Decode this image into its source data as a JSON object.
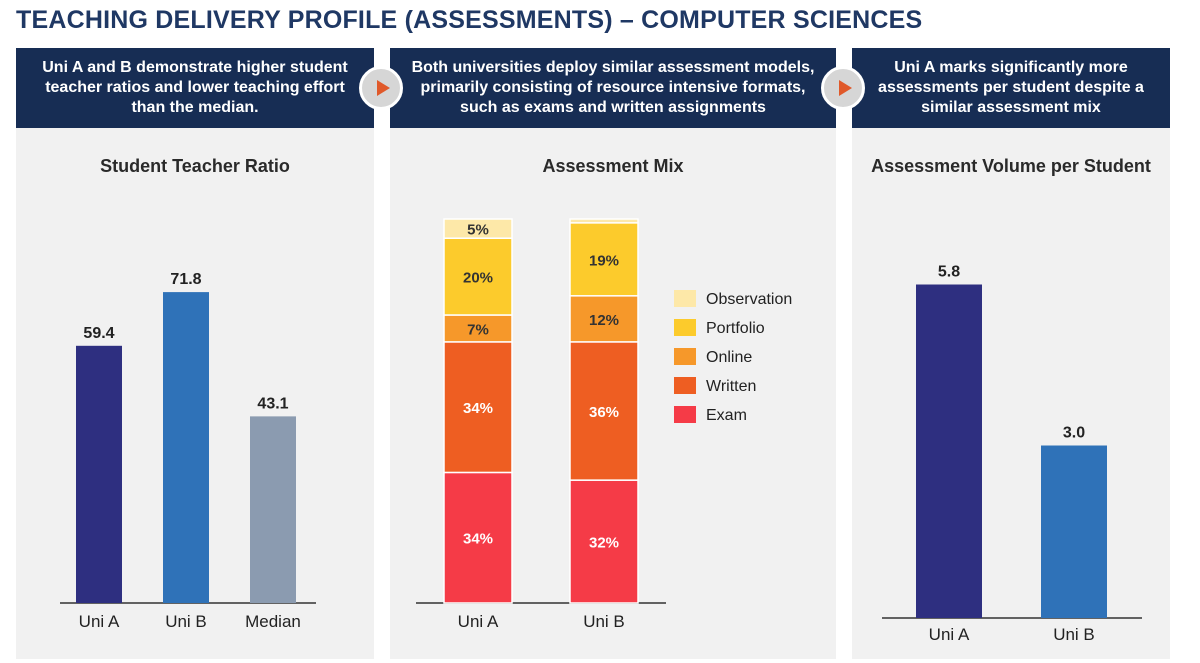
{
  "page_title": "TEACHING DELIVERY PROFILE (ASSESSMENTS) – COMPUTER SCIENCES",
  "panels": [
    {
      "header": "Uni A and B demonstrate higher student teacher ratios and lower teaching effort than the median."
    },
    {
      "header": "Both universities deploy similar assessment models, primarily consisting of resource intensive formats, such as exams and written assignments"
    },
    {
      "header": "Uni A marks significantly more assessments per student despite a similar assessment mix"
    }
  ],
  "colors": {
    "header_bg": "#172d54",
    "panel_bg": "#f1f1f1",
    "arrow": "#e0592a",
    "uni_a": "#2e2f80",
    "uni_b": "#2f72b8",
    "median": "#8b9bb0",
    "observation": "#fde8a8",
    "portfolio": "#fccb2c",
    "online": "#f6982a",
    "written": "#ee5e22",
    "exam": "#f53b47"
  },
  "chart_data": [
    {
      "type": "bar",
      "title": "Student Teacher Ratio",
      "categories": [
        "Uni A",
        "Uni B",
        "Median"
      ],
      "values": [
        59.4,
        71.8,
        43.1
      ],
      "value_labels": [
        "59.4",
        "71.8",
        "43.1"
      ],
      "ylim": [
        0,
        100
      ],
      "grid": false
    },
    {
      "type": "bar",
      "stacked": true,
      "title": "Assessment Mix",
      "categories": [
        "Uni A",
        "Uni B"
      ],
      "series": [
        {
          "name": "Exam",
          "values": [
            34,
            32
          ],
          "labels": [
            "34%",
            "32%"
          ]
        },
        {
          "name": "Written",
          "values": [
            34,
            36
          ],
          "labels": [
            "34%",
            "36%"
          ]
        },
        {
          "name": "Online",
          "values": [
            7,
            12
          ],
          "labels": [
            "7%",
            "12%"
          ]
        },
        {
          "name": "Portfolio",
          "values": [
            20,
            19
          ],
          "labels": [
            "20%",
            "19%"
          ]
        },
        {
          "name": "Observation",
          "values": [
            5,
            1
          ],
          "labels": [
            "5%",
            ""
          ]
        }
      ],
      "legend_order": [
        "Observation",
        "Portfolio",
        "Online",
        "Written",
        "Exam"
      ],
      "legend_position": "right",
      "ylim": [
        0,
        100
      ],
      "grid": false
    },
    {
      "type": "bar",
      "title": "Assessment Volume per Student",
      "categories": [
        "Uni A",
        "Uni B"
      ],
      "values": [
        5.8,
        3.0
      ],
      "value_labels": [
        "5.8",
        "3.0"
      ],
      "ylim": [
        0,
        8
      ],
      "grid": false
    }
  ]
}
